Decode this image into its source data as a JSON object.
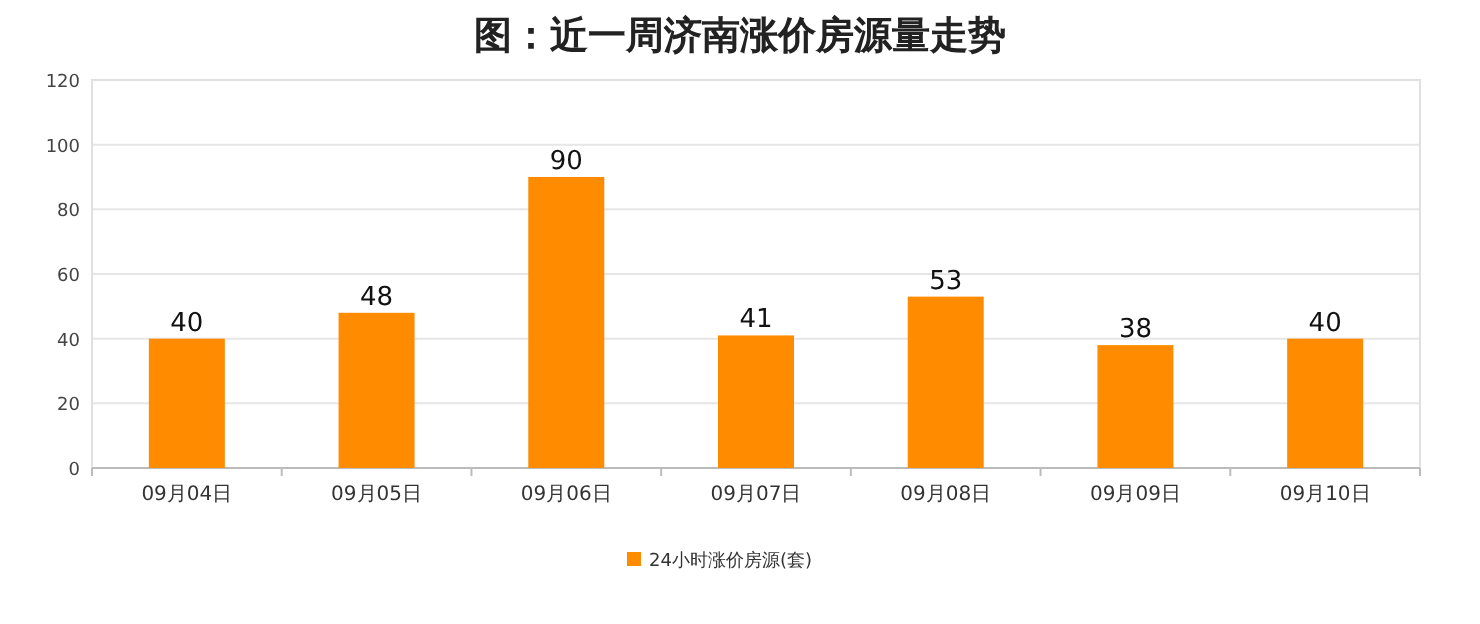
{
  "chart_data": {
    "type": "bar",
    "title": "图：近一周济南涨价房源量走势",
    "categories": [
      "09月04日",
      "09月05日",
      "09月06日",
      "09月07日",
      "09月08日",
      "09月09日",
      "09月10日"
    ],
    "series": [
      {
        "name": "24小时涨价房源(套)",
        "color": "#ff8c00",
        "values": [
          40,
          48,
          90,
          41,
          53,
          38,
          40
        ]
      }
    ],
    "ylim": [
      0,
      120
    ],
    "yticks": [
      0,
      20,
      40,
      60,
      80,
      100,
      120
    ],
    "grid": "y",
    "legend": "bottom",
    "data_labels": true
  }
}
